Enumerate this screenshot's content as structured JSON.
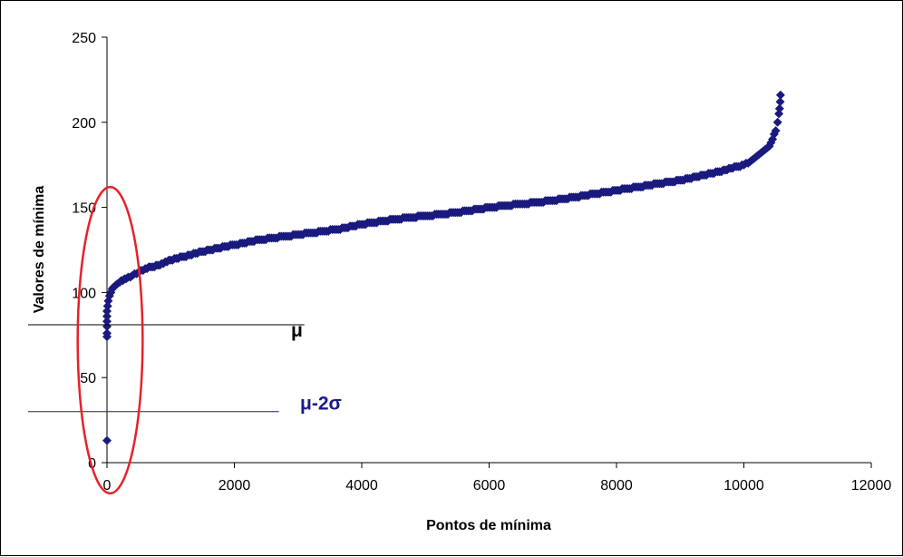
{
  "chart_data": {
    "type": "scatter",
    "title": "",
    "xlabel": "Pontos de mínima",
    "ylabel": "Valores de mínima",
    "xlim": [
      0,
      12000
    ],
    "ylim": [
      0,
      250
    ],
    "xticks": [
      0,
      2000,
      4000,
      6000,
      8000,
      10000,
      12000
    ],
    "yticks": [
      0,
      50,
      100,
      150,
      200,
      250
    ],
    "grid": false,
    "legend": "none",
    "marker_color": "#1a1a7e",
    "series": [
      {
        "marker": "diamond",
        "x": [
          0,
          0,
          0,
          0,
          0,
          0,
          0,
          10,
          20,
          40,
          60,
          80,
          100,
          130,
          160,
          200,
          250,
          300,
          400,
          500,
          600,
          800,
          1000,
          1300,
          1600,
          2000,
          2400,
          2800,
          3200,
          3600,
          4000,
          4500,
          5000,
          5500,
          6000,
          6500,
          7000,
          7500,
          8000,
          8500,
          9000,
          9500,
          10000,
          10100,
          10200,
          10300,
          10400,
          10450,
          10500,
          10530,
          10550,
          10560,
          10570,
          10575
        ],
        "y": [
          13,
          74,
          76,
          80,
          83,
          86,
          89,
          92,
          95,
          98,
          100,
          102,
          103,
          104,
          105,
          106,
          107,
          108,
          110,
          112,
          114,
          116,
          119,
          122,
          125,
          128,
          131,
          133,
          135,
          137,
          140,
          143,
          145,
          147,
          150,
          152,
          154,
          157,
          160,
          163,
          166,
          170,
          175,
          177,
          180,
          183,
          186,
          190,
          195,
          200,
          205,
          208,
          212,
          216
        ]
      }
    ],
    "reference_lines": [
      {
        "label": "μ",
        "y": 81,
        "x_end": 2700,
        "color": "#000000"
      },
      {
        "label": "μ-2σ",
        "y": 30,
        "x_end": 2700,
        "color": "#1a1a8c"
      }
    ],
    "highlight_ellipse": {
      "color": "#e8202a",
      "center_x": 50,
      "center_y": 72,
      "radius_x": 510,
      "radius_y": 90
    }
  }
}
